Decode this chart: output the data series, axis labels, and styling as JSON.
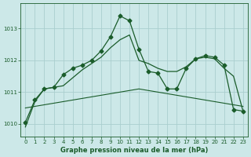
{
  "title": "Graphe pression niveau de la mer (hPa)",
  "background_color": "#cce8e8",
  "grid_color": "#aacece",
  "line_color": "#1a5c2a",
  "xlim": [
    -0.5,
    23.5
  ],
  "ylim": [
    1009.6,
    1013.8
  ],
  "yticks": [
    1010,
    1011,
    1012,
    1013
  ],
  "xticks": [
    0,
    1,
    2,
    3,
    4,
    5,
    6,
    7,
    8,
    9,
    10,
    11,
    12,
    13,
    14,
    15,
    16,
    17,
    18,
    19,
    20,
    21,
    22,
    23
  ],
  "line1_x": [
    0,
    1,
    2,
    3,
    4,
    5,
    6,
    7,
    8,
    9,
    10,
    11,
    12,
    13,
    14,
    15,
    16,
    17,
    18,
    19,
    20,
    21,
    22,
    23
  ],
  "line1_y": [
    1010.5,
    1010.55,
    1010.6,
    1010.65,
    1010.7,
    1010.75,
    1010.8,
    1010.85,
    1010.9,
    1010.95,
    1011.0,
    1011.05,
    1011.1,
    1011.05,
    1011.0,
    1010.95,
    1010.9,
    1010.85,
    1010.8,
    1010.75,
    1010.7,
    1010.65,
    1010.6,
    1010.55
  ],
  "line2_x": [
    0,
    1,
    2,
    3,
    4,
    5,
    6,
    7,
    8,
    9,
    10,
    11,
    12,
    13,
    14,
    15,
    16,
    17,
    18,
    19,
    20,
    21,
    22,
    23
  ],
  "line2_y": [
    1010.05,
    1010.75,
    1011.1,
    1011.15,
    1011.55,
    1011.75,
    1011.85,
    1012.0,
    1012.3,
    1012.75,
    1013.4,
    1013.25,
    1012.35,
    1011.65,
    1011.6,
    1011.1,
    1011.1,
    1011.75,
    1012.05,
    1012.15,
    1012.1,
    1011.85,
    1010.45,
    1010.4
  ],
  "line3_x": [
    0,
    1,
    2,
    3,
    4,
    5,
    6,
    7,
    8,
    9,
    10,
    11,
    12,
    13,
    14,
    15,
    16,
    17,
    18,
    19,
    20,
    21,
    22,
    23
  ],
  "line3_y": [
    1009.9,
    1010.7,
    1011.1,
    1011.15,
    1011.2,
    1011.45,
    1011.7,
    1011.9,
    1012.1,
    1012.4,
    1012.65,
    1012.8,
    1012.0,
    1011.9,
    1011.75,
    1011.65,
    1011.65,
    1011.8,
    1012.05,
    1012.1,
    1012.05,
    1011.75,
    1011.5,
    1010.4
  ],
  "marker_style": "D",
  "marker_size": 2.5,
  "title_fontsize": 6,
  "tick_fontsize": 5
}
